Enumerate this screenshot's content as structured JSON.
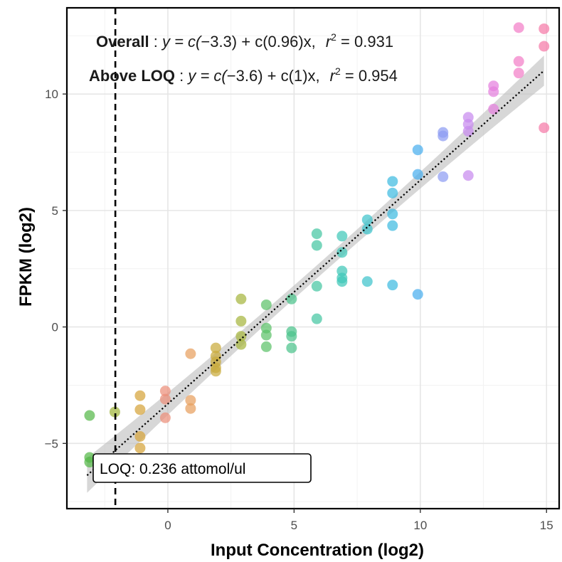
{
  "chart_data": {
    "type": "scatter",
    "xlabel": "Input Concentration (log2)",
    "ylabel": "FPKM (log2)",
    "xlim": [
      -4,
      15.5
    ],
    "ylim": [
      -7.8,
      13.7
    ],
    "x_ticks": [
      0,
      5,
      10,
      15
    ],
    "y_ticks": [
      -5,
      0,
      5,
      10
    ],
    "grid": true,
    "legend": "none",
    "annotations": {
      "overall": {
        "label": "Overall",
        "sep": " : ",
        "prefix": "y = c(",
        "intercept": "−3.3",
        "mid": ") + c(",
        "slope": "0.96",
        "suffix": ")x,",
        "r2_label": "r",
        "r2_sup": "2",
        "r2_eq": " = 0.931"
      },
      "above_loq": {
        "label": "Above LOQ",
        "sep": " : ",
        "prefix": "y = c(",
        "intercept": "−3.6",
        "mid": ") + c(",
        "slope": "1",
        "suffix": ")x,",
        "r2_label": "r",
        "r2_sup": "2",
        "r2_eq": " = 0.954"
      },
      "loq_label": "LOQ: 0.236 attomol/ul"
    },
    "loq_x": -2.08,
    "fit_line": {
      "x_start": -3.2,
      "x_end": 14.9,
      "intercept": -3.3,
      "slope": 0.96,
      "ci_halfwidth_start": 0.75,
      "ci_halfwidth_mid": 0.28,
      "ci_halfwidth_end": 0.65
    },
    "points": [
      {
        "x": -3.1,
        "y": -3.8,
        "color": "#56b84a"
      },
      {
        "x": -3.1,
        "y": -5.6,
        "color": "#56b84a"
      },
      {
        "x": -3.1,
        "y": -5.8,
        "color": "#56b84a"
      },
      {
        "x": -2.1,
        "y": -3.65,
        "color": "#9fb43a"
      },
      {
        "x": -1.1,
        "y": -2.95,
        "color": "#d6a43a"
      },
      {
        "x": -1.1,
        "y": -3.55,
        "color": "#d6a43a"
      },
      {
        "x": -1.1,
        "y": -4.7,
        "color": "#d6a43a"
      },
      {
        "x": -1.1,
        "y": -5.2,
        "color": "#d6a43a"
      },
      {
        "x": -0.1,
        "y": -2.75,
        "color": "#ec8f7a"
      },
      {
        "x": -0.1,
        "y": -3.1,
        "color": "#ec8f7a"
      },
      {
        "x": -0.1,
        "y": -3.9,
        "color": "#ec8f7a"
      },
      {
        "x": 0.9,
        "y": -1.15,
        "color": "#e8a05e"
      },
      {
        "x": 0.9,
        "y": -3.15,
        "color": "#e8a05e"
      },
      {
        "x": 0.9,
        "y": -3.5,
        "color": "#e8a05e"
      },
      {
        "x": 1.9,
        "y": -0.9,
        "color": "#c9ab3c"
      },
      {
        "x": 1.9,
        "y": -1.25,
        "color": "#c9ab3c"
      },
      {
        "x": 1.9,
        "y": -1.5,
        "color": "#c9ab3c"
      },
      {
        "x": 1.9,
        "y": -1.75,
        "color": "#c9ab3c"
      },
      {
        "x": 1.9,
        "y": -1.9,
        "color": "#c9ab3c"
      },
      {
        "x": 2.9,
        "y": 1.2,
        "color": "#a6b63e"
      },
      {
        "x": 2.9,
        "y": 0.25,
        "color": "#a6b63e"
      },
      {
        "x": 2.9,
        "y": -0.4,
        "color": "#a6b63e"
      },
      {
        "x": 2.9,
        "y": -0.75,
        "color": "#a6b63e"
      },
      {
        "x": 3.9,
        "y": 0.95,
        "color": "#5dc26a"
      },
      {
        "x": 3.9,
        "y": -0.05,
        "color": "#5dc26a"
      },
      {
        "x": 3.9,
        "y": -0.35,
        "color": "#5dc26a"
      },
      {
        "x": 3.9,
        "y": -0.85,
        "color": "#5dc26a"
      },
      {
        "x": 4.9,
        "y": 1.2,
        "color": "#4cc48c"
      },
      {
        "x": 4.9,
        "y": -0.2,
        "color": "#4cc48c"
      },
      {
        "x": 4.9,
        "y": -0.4,
        "color": "#4cc48c"
      },
      {
        "x": 4.9,
        "y": -0.9,
        "color": "#4cc48c"
      },
      {
        "x": 5.9,
        "y": 4.0,
        "color": "#45c6a2"
      },
      {
        "x": 5.9,
        "y": 3.5,
        "color": "#45c6a2"
      },
      {
        "x": 5.9,
        "y": 1.75,
        "color": "#45c6a2"
      },
      {
        "x": 5.9,
        "y": 0.35,
        "color": "#45c6a2"
      },
      {
        "x": 6.9,
        "y": 3.9,
        "color": "#40c8b8"
      },
      {
        "x": 6.9,
        "y": 3.2,
        "color": "#40c8b8"
      },
      {
        "x": 6.9,
        "y": 2.4,
        "color": "#40c8b8"
      },
      {
        "x": 6.9,
        "y": 2.1,
        "color": "#40c8b8"
      },
      {
        "x": 6.9,
        "y": 1.95,
        "color": "#40c8b8"
      },
      {
        "x": 7.9,
        "y": 4.6,
        "color": "#3ec3cc"
      },
      {
        "x": 7.9,
        "y": 4.2,
        "color": "#3ec3cc"
      },
      {
        "x": 7.9,
        "y": 1.95,
        "color": "#3ec3cc"
      },
      {
        "x": 8.9,
        "y": 6.25,
        "color": "#3ebbe0"
      },
      {
        "x": 8.9,
        "y": 5.75,
        "color": "#3ebbe0"
      },
      {
        "x": 8.9,
        "y": 4.85,
        "color": "#3ebbe0"
      },
      {
        "x": 8.9,
        "y": 4.35,
        "color": "#3ebbe0"
      },
      {
        "x": 8.9,
        "y": 1.8,
        "color": "#3ebbe0"
      },
      {
        "x": 9.9,
        "y": 7.6,
        "color": "#4aaeee"
      },
      {
        "x": 9.9,
        "y": 6.55,
        "color": "#4aaeee"
      },
      {
        "x": 9.9,
        "y": 1.4,
        "color": "#4aaeee"
      },
      {
        "x": 10.9,
        "y": 8.35,
        "color": "#8e9cf2"
      },
      {
        "x": 10.9,
        "y": 8.2,
        "color": "#8e9cf2"
      },
      {
        "x": 10.9,
        "y": 6.45,
        "color": "#8e9cf2"
      },
      {
        "x": 11.9,
        "y": 9.0,
        "color": "#c88aee"
      },
      {
        "x": 11.9,
        "y": 8.7,
        "color": "#c88aee"
      },
      {
        "x": 11.9,
        "y": 8.4,
        "color": "#c88aee"
      },
      {
        "x": 11.9,
        "y": 6.5,
        "color": "#c88aee"
      },
      {
        "x": 12.9,
        "y": 10.35,
        "color": "#e480de"
      },
      {
        "x": 12.9,
        "y": 10.1,
        "color": "#e480de"
      },
      {
        "x": 12.9,
        "y": 9.35,
        "color": "#e480de"
      },
      {
        "x": 13.9,
        "y": 12.85,
        "color": "#f27ec8"
      },
      {
        "x": 13.9,
        "y": 11.4,
        "color": "#f27ec8"
      },
      {
        "x": 13.9,
        "y": 10.9,
        "color": "#f27ec8"
      },
      {
        "x": 14.9,
        "y": 12.8,
        "color": "#f57aa8"
      },
      {
        "x": 14.9,
        "y": 12.05,
        "color": "#f57aa8"
      },
      {
        "x": 14.9,
        "y": 8.55,
        "color": "#f57aa8"
      }
    ]
  }
}
